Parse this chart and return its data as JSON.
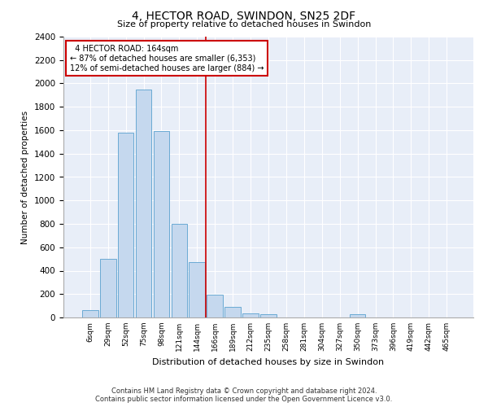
{
  "title": "4, HECTOR ROAD, SWINDON, SN25 2DF",
  "subtitle": "Size of property relative to detached houses in Swindon",
  "xlabel": "Distribution of detached houses by size in Swindon",
  "ylabel": "Number of detached properties",
  "annotation_line1": "  4 HECTOR ROAD: 164sqm",
  "annotation_line2": "← 87% of detached houses are smaller (6,353)",
  "annotation_line3": "12% of semi-detached houses are larger (884) →",
  "bar_color": "#c5d8ee",
  "bar_edge_color": "#6aaad4",
  "vline_color": "#cc0000",
  "annotation_box_edgecolor": "#cc0000",
  "background_color": "#e8eef8",
  "ylim": [
    0,
    2400
  ],
  "yticks": [
    0,
    200,
    400,
    600,
    800,
    1000,
    1200,
    1400,
    1600,
    1800,
    2000,
    2200,
    2400
  ],
  "categories": [
    "6sqm",
    "29sqm",
    "52sqm",
    "75sqm",
    "98sqm",
    "121sqm",
    "144sqm",
    "166sqm",
    "189sqm",
    "212sqm",
    "235sqm",
    "258sqm",
    "281sqm",
    "304sqm",
    "327sqm",
    "350sqm",
    "373sqm",
    "396sqm",
    "419sqm",
    "442sqm",
    "465sqm"
  ],
  "values": [
    60,
    500,
    1580,
    1950,
    1590,
    800,
    475,
    195,
    90,
    35,
    30,
    0,
    0,
    0,
    0,
    25,
    0,
    0,
    0,
    0,
    0
  ],
  "vline_x": 6.5,
  "footer1": "Contains HM Land Registry data © Crown copyright and database right 2024.",
  "footer2": "Contains public sector information licensed under the Open Government Licence v3.0."
}
